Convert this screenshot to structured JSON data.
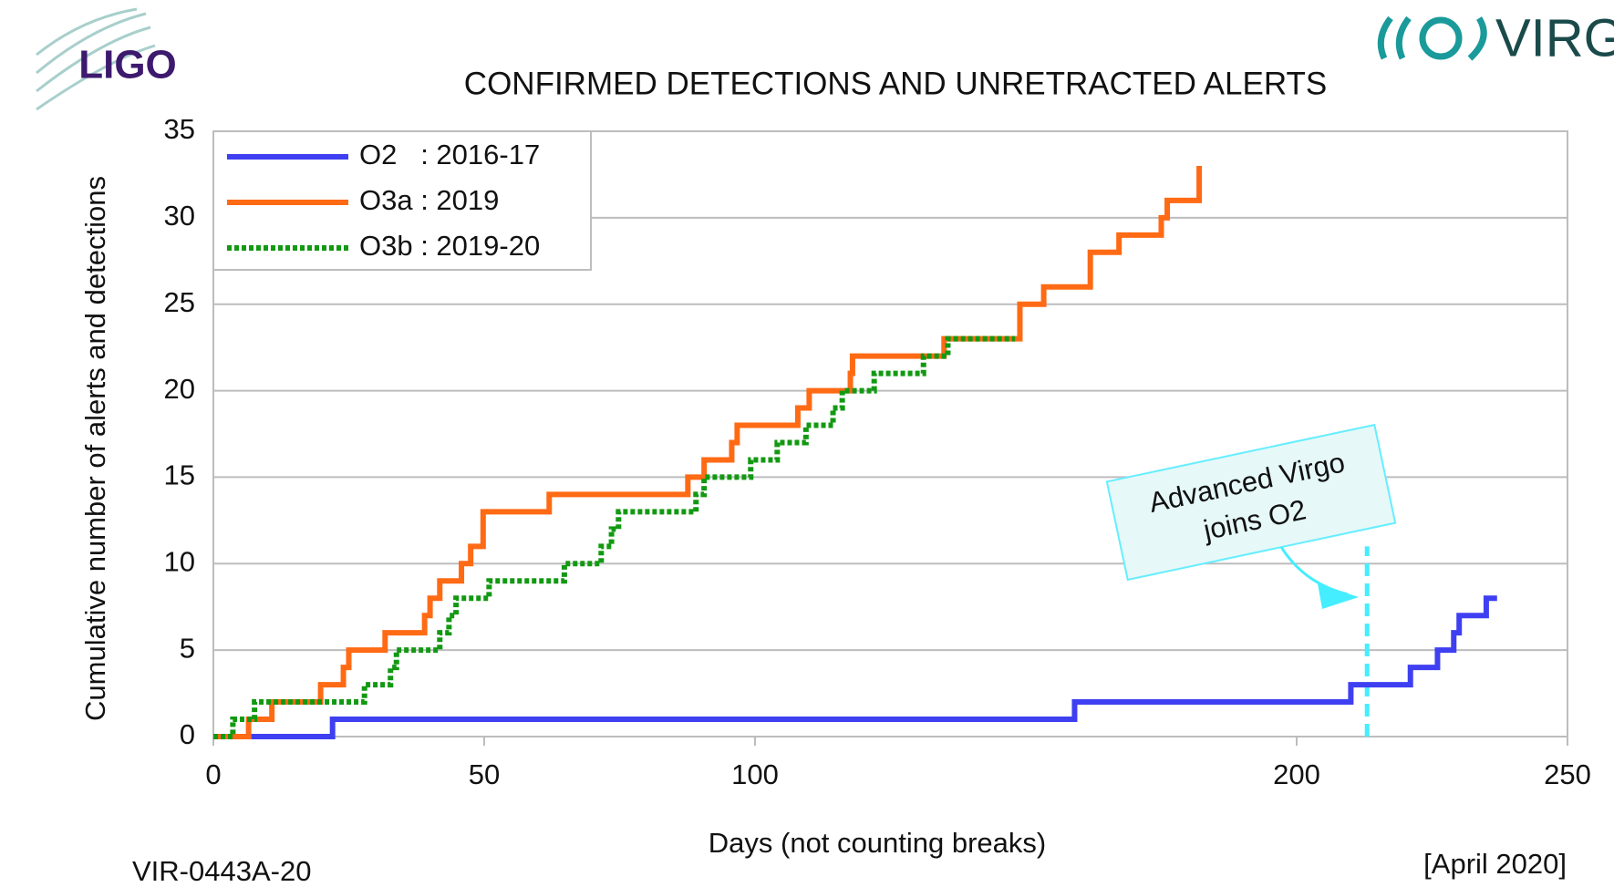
{
  "chart_data": {
    "type": "step",
    "title": "CONFIRMED DETECTIONS AND UNRETRACTED ALERTS",
    "xlabel": "Days (not counting breaks)",
    "ylabel": "Cumulative number of alerts and detections",
    "xlim": [
      0,
      250
    ],
    "xticks": [
      0,
      50,
      100,
      200,
      250
    ],
    "ylim": [
      0,
      35
    ],
    "yticks": [
      0,
      5,
      10,
      15,
      20,
      25,
      30,
      35
    ],
    "grid": true,
    "legend": "upper-left",
    "series": [
      {
        "name": "O2   : 2016-17",
        "color": "#3f3ff2",
        "style": "solid",
        "x": [
          7,
          22,
          159,
          210,
          221,
          226,
          229,
          230,
          235,
          237
        ],
        "values": [
          0,
          1,
          2,
          3,
          4,
          5,
          6,
          7,
          8,
          8
        ]
      },
      {
        "name": "O3a : 2019",
        "color": "#ff6a14",
        "style": "solid",
        "x": [
          0,
          6.5,
          10.8,
          19.8,
          24,
          25,
          31.7,
          39,
          40,
          41.8,
          45.8,
          47.5,
          49.8,
          62,
          87.6,
          90.6,
          95.7,
          96.7,
          107.9,
          110,
          117.6,
          118,
          134.9,
          148.9,
          153.3,
          161.9,
          167.2,
          175,
          176.1,
          182
        ],
        "values": [
          0,
          1,
          2,
          3,
          4,
          5,
          6,
          7,
          8,
          9,
          10,
          11,
          13,
          14,
          15,
          16,
          17,
          18,
          19,
          20,
          21,
          22,
          23,
          25,
          26,
          28,
          29,
          30,
          31,
          33
        ]
      },
      {
        "name": "O3b : 2019-20",
        "color": "#129912",
        "style": "dotted",
        "x": [
          0,
          3.6,
          7.6,
          27.9,
          32.7,
          33.8,
          41.8,
          43.5,
          44.8,
          50.9,
          64.8,
          71.6,
          73.5,
          74.8,
          89.1,
          90.6,
          99.2,
          104.1,
          109.4,
          114.4,
          116.1,
          122,
          131.1,
          135.6,
          148
        ],
        "values": [
          0,
          1,
          2,
          3,
          4,
          5,
          6,
          7,
          8,
          9,
          10,
          11,
          12,
          13,
          14,
          15,
          16,
          17,
          18,
          19,
          20,
          21,
          22,
          23,
          23
        ]
      }
    ],
    "annotation": {
      "lines": [
        "Advanced Virgo",
        "joins O2"
      ],
      "x": 213,
      "y": 11,
      "color": "#44eeff"
    },
    "footer_left": "VIR-0443A-20",
    "footer_right": "[April 2020]",
    "logo_left": "LIGO",
    "logo_right": "VIRGO"
  }
}
